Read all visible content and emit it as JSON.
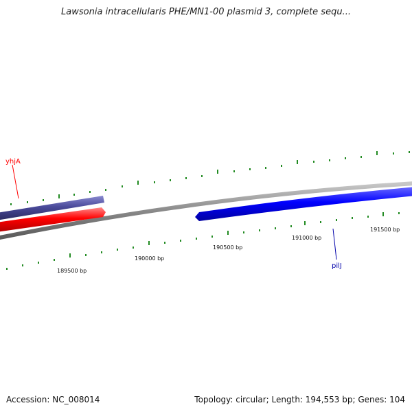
{
  "title": "Lawsonia intracellularis PHE/MN1-00 plasmid 3, complete sequ...",
  "footer": {
    "accession": "Accession: NC_008014",
    "summary": "Topology: circular; Length: 194,553 bp; Genes: 104"
  },
  "ruler": {
    "labels": [
      "189500 bp",
      "190000 bp",
      "190500 bp",
      "191000 bp",
      "191500 bp"
    ]
  },
  "genes": [
    {
      "name": "yhjA",
      "color": "#ff0000"
    },
    {
      "name": "pilJ",
      "color": "#0000cc"
    }
  ],
  "colors": {
    "gene_red": "#ff0000",
    "gene_purple": "#4a4a9a",
    "gene_blue": "#0000ff",
    "backbone": "#808080",
    "ticks": "#228b22"
  }
}
